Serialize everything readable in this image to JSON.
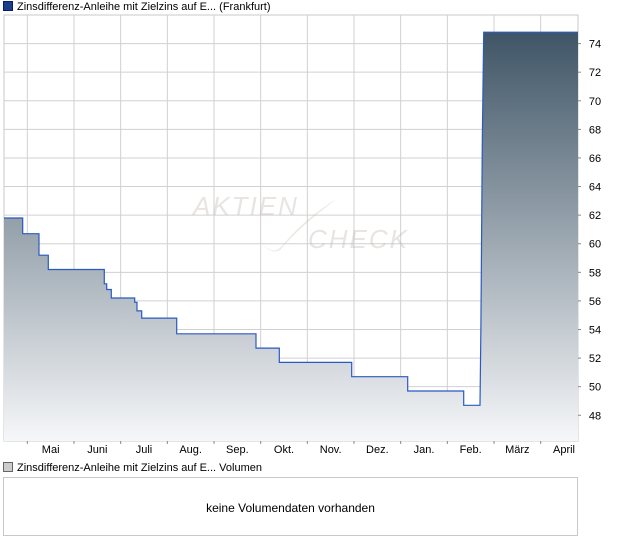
{
  "legend": {
    "price_label": "Zinsdifferenz-Anleihe mit Zielzins auf E... (Frankfurt)",
    "volume_label": "Zinsdifferenz-Anleihe mit Zielzins auf E... Volumen"
  },
  "watermark": {
    "line1": "AKTIEN",
    "line2": "CHECK"
  },
  "volume": {
    "message": "keine Volumendaten vorhanden"
  },
  "colors": {
    "line": "#2b59c3",
    "fill_top": "#3f5566",
    "fill_bottom": "#f6f7f9",
    "grid": "#d0d0d0"
  },
  "chart_data": {
    "type": "area",
    "x_ticks": [
      "Mai",
      "Juni",
      "Juli",
      "Aug.",
      "Sep.",
      "Okt.",
      "Nov.",
      "Dez.",
      "Jan.",
      "Feb.",
      "März",
      "April"
    ],
    "y_ticks": [
      48,
      50,
      52,
      54,
      56,
      58,
      60,
      62,
      64,
      66,
      68,
      70,
      72,
      74
    ],
    "ylim": [
      46.2,
      76.0
    ],
    "xlim": [
      0,
      12.3
    ],
    "grid": true,
    "y_axis_side": "right",
    "x": [
      0,
      0.4,
      0.4,
      0.75,
      0.75,
      0.95,
      0.95,
      1.22,
      1.22,
      2.15,
      2.15,
      2.2,
      2.2,
      2.3,
      2.3,
      2.8,
      2.8,
      2.85,
      2.85,
      2.95,
      2.95,
      3.0,
      3.0,
      3.7,
      3.7,
      5.4,
      5.4,
      5.9,
      5.9,
      7.45,
      7.45,
      8.65,
      8.65,
      9.85,
      9.85,
      10.2,
      10.2,
      10.22,
      10.25,
      10.28,
      10.3,
      12.3
    ],
    "y": [
      61.8,
      61.8,
      60.7,
      60.7,
      59.2,
      59.2,
      58.2,
      58.2,
      58.2,
      58.2,
      57.2,
      57.2,
      56.8,
      56.8,
      56.2,
      56.2,
      55.9,
      55.9,
      55.3,
      55.3,
      54.8,
      54.8,
      54.8,
      54.8,
      53.7,
      53.7,
      52.7,
      52.7,
      51.7,
      51.7,
      50.7,
      50.7,
      49.7,
      49.7,
      48.7,
      48.7,
      48.7,
      54.2,
      67.2,
      74.8,
      74.8,
      74.8
    ]
  }
}
